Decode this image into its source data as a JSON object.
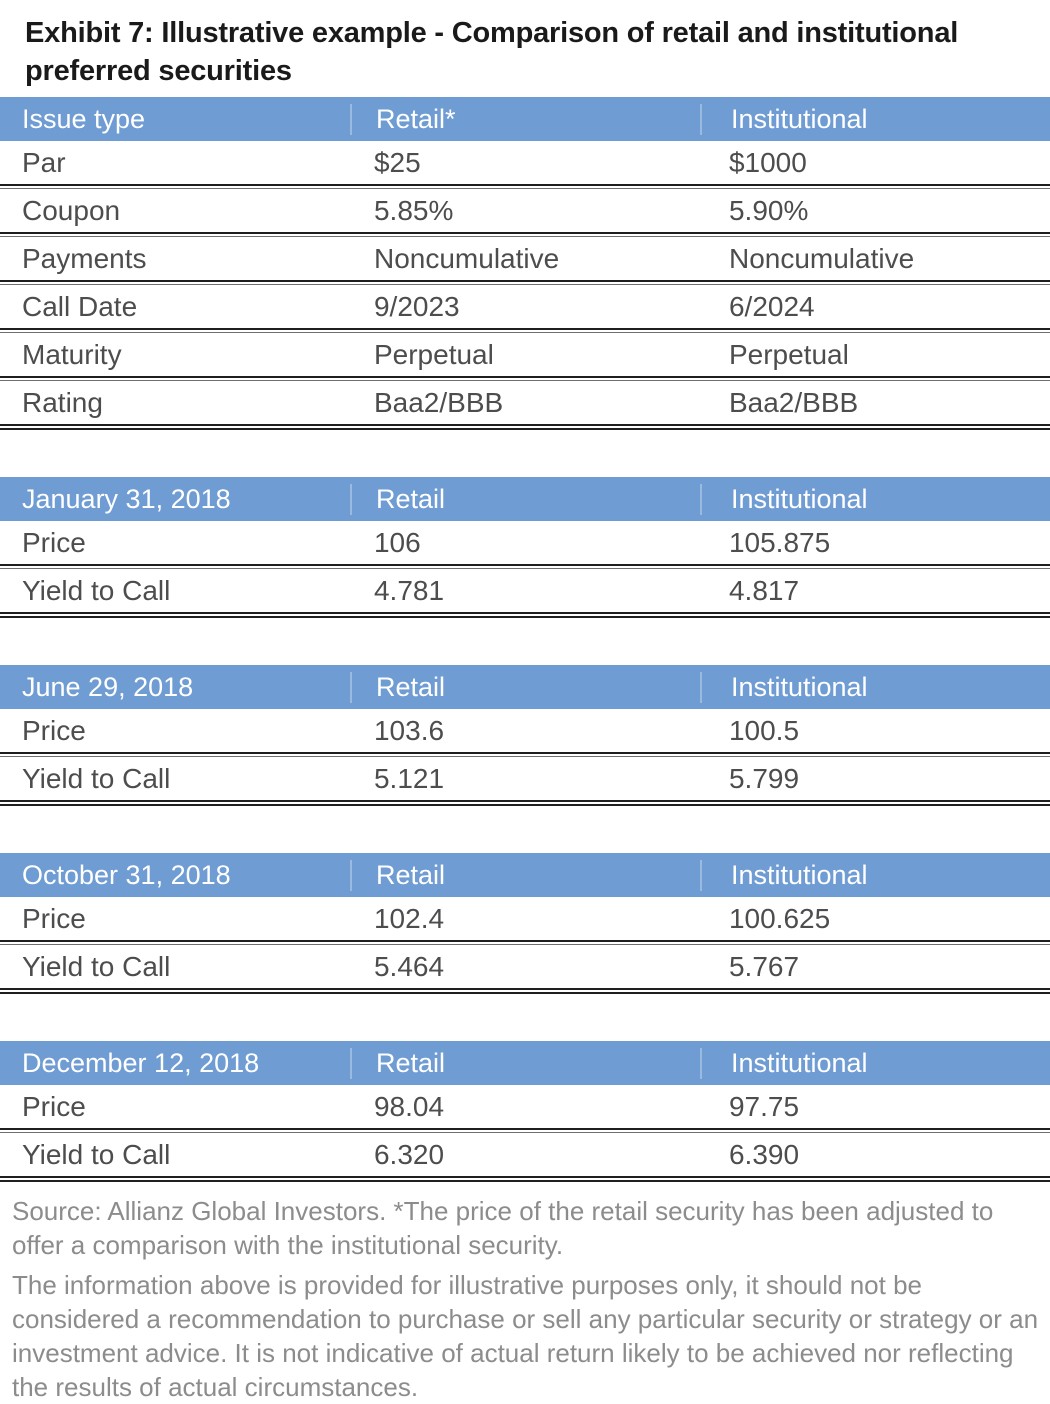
{
  "title": "Exhibit 7: Illustrative example - Comparison of retail and institutional preferred securities",
  "colors": {
    "header_blue": "#6f9cd3",
    "header_text": "#ffffff",
    "body_text": "#4d4d4d",
    "title_text": "#1a1a1a",
    "footnote_text": "#8c8c8c",
    "divider": "#1f1f1f"
  },
  "tables": [
    {
      "header": [
        "Issue type",
        "Retail*",
        "Institutional"
      ],
      "rows": [
        [
          "Par",
          "$25",
          "$1000"
        ],
        [
          "Coupon",
          "5.85%",
          "5.90%"
        ],
        [
          "Payments",
          "Noncumulative",
          "Noncumulative"
        ],
        [
          "Call Date",
          "9/2023",
          "6/2024"
        ],
        [
          "Maturity",
          "Perpetual",
          "Perpetual"
        ],
        [
          "Rating",
          "Baa2/BBB",
          "Baa2/BBB"
        ]
      ]
    },
    {
      "header": [
        "January 31, 2018",
        "Retail",
        "Institutional"
      ],
      "rows": [
        [
          "Price",
          "106",
          "105.875"
        ],
        [
          "Yield to Call",
          "4.781",
          "4.817"
        ]
      ]
    },
    {
      "header": [
        "June 29, 2018",
        "Retail",
        "Institutional"
      ],
      "rows": [
        [
          "Price",
          "103.6",
          "100.5"
        ],
        [
          "Yield to Call",
          "5.121",
          "5.799"
        ]
      ]
    },
    {
      "header": [
        "October 31, 2018",
        "Retail",
        "Institutional"
      ],
      "rows": [
        [
          "Price",
          "102.4",
          "100.625"
        ],
        [
          "Yield to Call",
          "5.464",
          "5.767"
        ]
      ]
    },
    {
      "header": [
        "December 12, 2018",
        "Retail",
        "Institutional"
      ],
      "rows": [
        [
          "Price",
          "98.04",
          "97.75"
        ],
        [
          "Yield to Call",
          "6.320",
          "6.390"
        ]
      ]
    }
  ],
  "footnotes": {
    "source": "Source: Allianz Global Investors.  *The price of the retail security has been adjusted to offer a comparison with the institutional security.",
    "disclaimer": "The information above is provided for illustrative purposes only, it should not be considered a recommendation to purchase or sell any particular security or strategy or an investment advice. It is not indicative of actual return likely to be achieved nor reflecting the results of actual circumstances."
  }
}
